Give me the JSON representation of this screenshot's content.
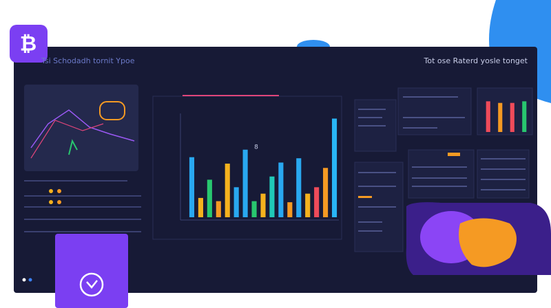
{
  "header": {
    "left": "Tsi Schodadh tornit Ypoe",
    "right": "Tot ose Raterd yosle tonget",
    "chart_note": "8"
  },
  "chart_data": [
    {
      "type": "bar",
      "categories": [
        null,
        null,
        null,
        null,
        null,
        null,
        null,
        null,
        null,
        null,
        null,
        null,
        null,
        null,
        null,
        null,
        null
      ],
      "values": [
        56,
        18,
        35,
        15,
        50,
        28,
        63,
        15,
        22,
        38,
        51,
        14,
        55,
        22,
        28,
        46,
        92
      ],
      "colors": [
        "#29a8f0",
        "#f5b21e",
        "#28c76f",
        "#f59a23",
        "#f5b21e",
        "#29a8f0",
        "#29a8f0",
        "#28c76f",
        "#f5b21e",
        "#20c9b8",
        "#29a8f0",
        "#f59a23",
        "#29a8f0",
        "#f5b21e",
        "#ef4b5a",
        "#f59a23",
        "#29b6f6"
      ],
      "ylim": [
        0,
        100
      ]
    },
    {
      "type": "bar",
      "categories": [
        null,
        null,
        null,
        null
      ],
      "values": [
        95,
        90,
        90,
        95
      ],
      "colors": [
        "#ef4b5a",
        "#f59a23",
        "#ef4b5a",
        "#28c76f"
      ],
      "ylim": [
        0,
        100
      ]
    }
  ]
}
